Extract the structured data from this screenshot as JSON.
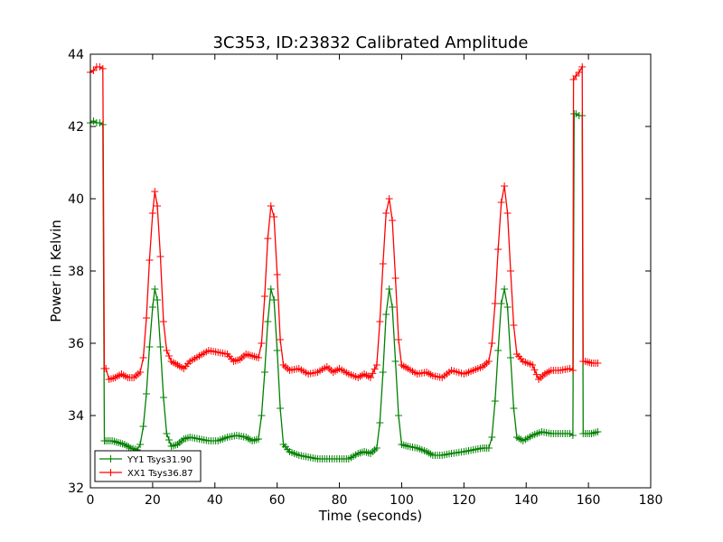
{
  "chart_data": {
    "type": "line",
    "title": "3C353, ID:23832 Calibrated Amplitude",
    "xlabel": "Time (seconds)",
    "ylabel": "Power in Kelvin",
    "xlim": [
      0,
      180
    ],
    "ylim": [
      32,
      44
    ],
    "xticks": [
      0,
      20,
      40,
      60,
      80,
      100,
      120,
      140,
      160,
      180
    ],
    "yticks": [
      32,
      34,
      36,
      38,
      40,
      42,
      44
    ],
    "grid": false,
    "legend_position": "lower-left",
    "marker": "plus",
    "series": [
      {
        "name": "YY1 Tsys31.90",
        "color": "#008000",
        "points": [
          [
            0,
            42.1
          ],
          [
            1,
            42.15
          ],
          [
            2,
            42.1
          ],
          [
            3,
            42.1
          ],
          [
            4,
            42.05
          ],
          [
            4.5,
            33.3
          ],
          [
            5,
            33.3
          ],
          [
            7,
            33.3
          ],
          [
            9,
            33.25
          ],
          [
            11,
            33.2
          ],
          [
            13,
            33.1
          ],
          [
            15,
            33.05
          ],
          [
            16,
            33.2
          ],
          [
            17,
            33.7
          ],
          [
            18,
            34.6
          ],
          [
            19,
            35.9
          ],
          [
            20,
            37.0
          ],
          [
            20.7,
            37.5
          ],
          [
            21.5,
            37.2
          ],
          [
            22.5,
            35.9
          ],
          [
            23.5,
            34.5
          ],
          [
            24.5,
            33.5
          ],
          [
            26,
            33.15
          ],
          [
            28,
            33.2
          ],
          [
            30,
            33.35
          ],
          [
            32,
            33.4
          ],
          [
            35,
            33.35
          ],
          [
            38,
            33.3
          ],
          [
            41,
            33.3
          ],
          [
            44,
            33.4
          ],
          [
            47,
            33.45
          ],
          [
            50,
            33.4
          ],
          [
            52,
            33.3
          ],
          [
            54,
            33.35
          ],
          [
            55,
            34.0
          ],
          [
            56,
            35.2
          ],
          [
            57,
            36.6
          ],
          [
            58,
            37.5
          ],
          [
            59,
            37.2
          ],
          [
            60,
            35.8
          ],
          [
            61,
            34.2
          ],
          [
            62,
            33.2
          ],
          [
            64,
            33.0
          ],
          [
            67,
            32.9
          ],
          [
            70,
            32.85
          ],
          [
            73,
            32.8
          ],
          [
            76,
            32.8
          ],
          [
            80,
            32.8
          ],
          [
            83,
            32.8
          ],
          [
            86,
            32.95
          ],
          [
            88,
            33.0
          ],
          [
            90,
            32.95
          ],
          [
            92,
            33.1
          ],
          [
            93,
            33.8
          ],
          [
            94,
            35.2
          ],
          [
            95,
            36.8
          ],
          [
            96,
            37.5
          ],
          [
            97,
            37.0
          ],
          [
            98,
            35.5
          ],
          [
            99,
            34.0
          ],
          [
            100,
            33.2
          ],
          [
            102,
            33.15
          ],
          [
            105,
            33.1
          ],
          [
            108,
            33.0
          ],
          [
            110,
            32.9
          ],
          [
            113,
            32.9
          ],
          [
            116,
            32.95
          ],
          [
            120,
            33.0
          ],
          [
            123,
            33.05
          ],
          [
            126,
            33.1
          ],
          [
            128,
            33.1
          ],
          [
            129,
            33.4
          ],
          [
            130,
            34.4
          ],
          [
            131,
            35.8
          ],
          [
            132,
            37.1
          ],
          [
            133,
            37.5
          ],
          [
            134,
            37.0
          ],
          [
            135,
            35.6
          ],
          [
            136,
            34.2
          ],
          [
            137,
            33.4
          ],
          [
            139,
            33.3
          ],
          [
            142,
            33.45
          ],
          [
            145,
            33.55
          ],
          [
            148,
            33.5
          ],
          [
            151,
            33.5
          ],
          [
            154,
            33.5
          ],
          [
            155,
            33.45
          ],
          [
            155.4,
            42.35
          ],
          [
            156,
            42.35
          ],
          [
            157,
            42.3
          ],
          [
            158,
            42.3
          ],
          [
            158.3,
            33.5
          ],
          [
            159,
            33.5
          ],
          [
            161,
            33.5
          ],
          [
            163,
            33.55
          ]
        ]
      },
      {
        "name": "XX1 Tsys36.87",
        "color": "#ff0000",
        "points": [
          [
            0,
            43.5
          ],
          [
            1,
            43.55
          ],
          [
            2,
            43.65
          ],
          [
            3,
            43.65
          ],
          [
            4,
            43.6
          ],
          [
            4.5,
            35.3
          ],
          [
            5,
            35.3
          ],
          [
            6,
            35.0
          ],
          [
            8,
            35.05
          ],
          [
            10,
            35.15
          ],
          [
            12,
            35.05
          ],
          [
            14,
            35.05
          ],
          [
            16,
            35.2
          ],
          [
            17,
            35.6
          ],
          [
            18,
            36.7
          ],
          [
            19,
            38.3
          ],
          [
            20,
            39.6
          ],
          [
            20.7,
            40.2
          ],
          [
            21.5,
            39.8
          ],
          [
            22.5,
            38.4
          ],
          [
            23.5,
            36.6
          ],
          [
            24.5,
            35.8
          ],
          [
            26,
            35.5
          ],
          [
            28,
            35.4
          ],
          [
            30,
            35.3
          ],
          [
            32,
            35.5
          ],
          [
            35,
            35.65
          ],
          [
            38,
            35.8
          ],
          [
            41,
            35.75
          ],
          [
            44,
            35.7
          ],
          [
            46,
            35.5
          ],
          [
            48,
            35.55
          ],
          [
            50,
            35.7
          ],
          [
            52,
            35.65
          ],
          [
            54,
            35.6
          ],
          [
            55,
            36.0
          ],
          [
            56,
            37.3
          ],
          [
            57,
            38.9
          ],
          [
            58,
            39.8
          ],
          [
            59,
            39.5
          ],
          [
            60,
            37.9
          ],
          [
            61,
            36.1
          ],
          [
            62,
            35.4
          ],
          [
            64,
            35.25
          ],
          [
            67,
            35.3
          ],
          [
            70,
            35.15
          ],
          [
            73,
            35.2
          ],
          [
            76,
            35.35
          ],
          [
            78,
            35.2
          ],
          [
            80,
            35.3
          ],
          [
            83,
            35.15
          ],
          [
            86,
            35.05
          ],
          [
            88,
            35.15
          ],
          [
            90,
            35.05
          ],
          [
            92,
            35.4
          ],
          [
            93,
            36.6
          ],
          [
            94,
            38.2
          ],
          [
            95,
            39.6
          ],
          [
            96,
            40.0
          ],
          [
            97,
            39.4
          ],
          [
            98,
            37.8
          ],
          [
            99,
            36.1
          ],
          [
            100,
            35.4
          ],
          [
            102,
            35.3
          ],
          [
            105,
            35.15
          ],
          [
            108,
            35.2
          ],
          [
            110,
            35.1
          ],
          [
            113,
            35.05
          ],
          [
            116,
            35.25
          ],
          [
            120,
            35.15
          ],
          [
            123,
            35.25
          ],
          [
            126,
            35.35
          ],
          [
            128,
            35.5
          ],
          [
            129,
            36.0
          ],
          [
            130,
            37.1
          ],
          [
            131,
            38.6
          ],
          [
            132,
            39.9
          ],
          [
            133,
            40.35
          ],
          [
            134,
            39.6
          ],
          [
            135,
            38.0
          ],
          [
            136,
            36.5
          ],
          [
            137,
            35.7
          ],
          [
            139,
            35.5
          ],
          [
            142,
            35.4
          ],
          [
            144,
            35.0
          ],
          [
            146,
            35.15
          ],
          [
            148,
            35.25
          ],
          [
            151,
            35.25
          ],
          [
            154,
            35.3
          ],
          [
            155,
            35.25
          ],
          [
            155.2,
            43.3
          ],
          [
            156,
            43.4
          ],
          [
            157,
            43.5
          ],
          [
            158,
            43.65
          ],
          [
            158.3,
            35.5
          ],
          [
            159,
            35.5
          ],
          [
            161,
            35.45
          ],
          [
            163,
            35.45
          ]
        ]
      }
    ]
  }
}
